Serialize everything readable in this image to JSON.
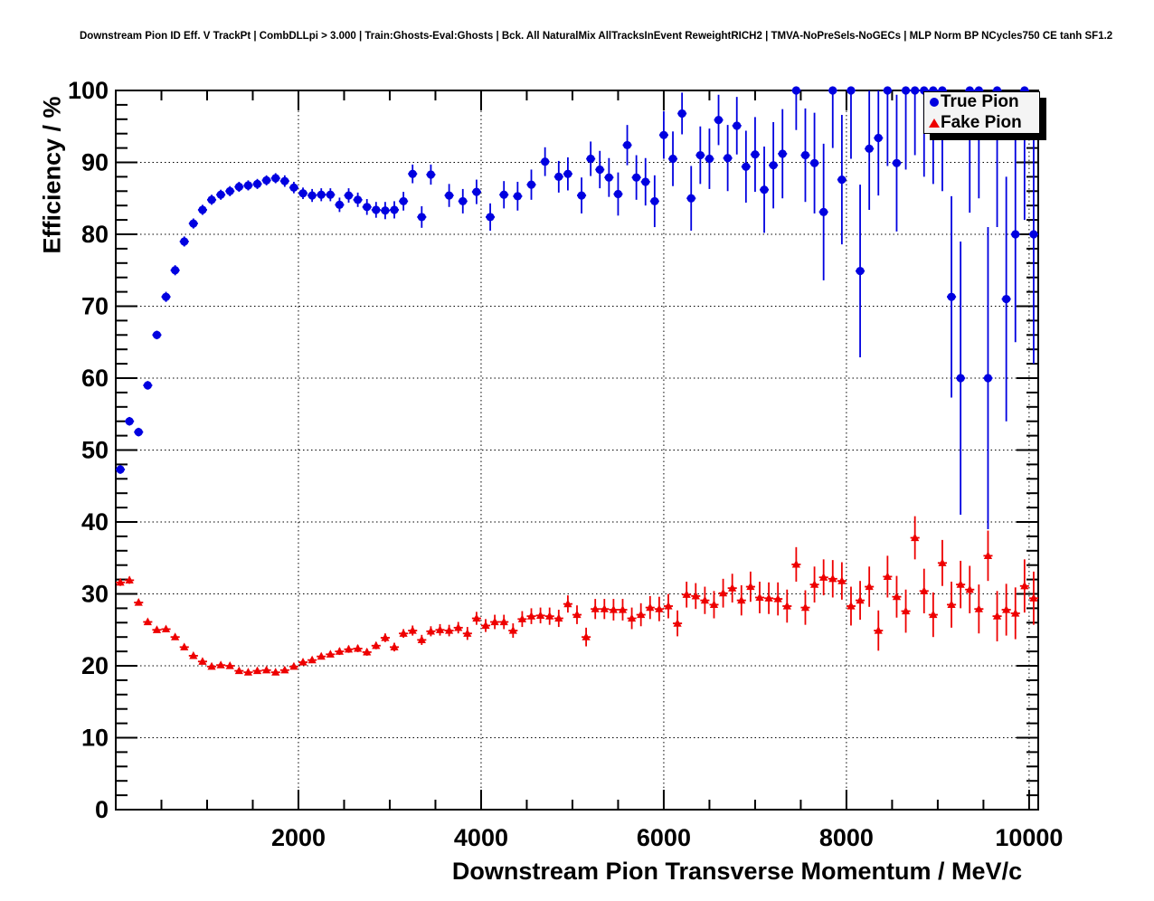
{
  "header": {
    "title": "Downstream Pion ID Eff. V TrackPt | CombDLLpi > 3.000 | Train:Ghosts-Eval:Ghosts | Bck. All NaturalMix AllTracksInEvent ReweightRICH2 | TMVA-NoPreSels-NoGECs | MLP Norm BP NCycles750 CE tanh SF1.2"
  },
  "legend": {
    "entries": [
      {
        "label": "True Pion",
        "marker": "circle",
        "color": "#0000e0"
      },
      {
        "label": "Fake Pion",
        "marker": "triangle",
        "color": "#ee0000"
      }
    ]
  },
  "chart_data": {
    "type": "scatter",
    "title": "Downstream Pion ID Eff. V TrackPt",
    "xlabel": "Downstream Pion Transverse Momentum / MeV/c",
    "ylabel": "Efficiency / %",
    "xlim": [
      0,
      10100
    ],
    "ylim": [
      0,
      100
    ],
    "xticks_major": [
      2000,
      4000,
      6000,
      8000,
      10000
    ],
    "xtick_minor_step": 500,
    "ytick_major_step": 10,
    "ytick_minor_step": 2,
    "grid": "dotted",
    "legend_position": "top-right",
    "x_half_bin": 50,
    "series": [
      {
        "name": "True Pion",
        "marker": "circle",
        "color": "#0000e0",
        "points": [
          [
            50,
            47.3,
            0.6
          ],
          [
            150,
            54.0,
            0.6
          ],
          [
            250,
            52.5,
            0.6
          ],
          [
            350,
            59.0,
            0.6
          ],
          [
            450,
            66.0,
            0.6
          ],
          [
            550,
            71.3,
            0.7
          ],
          [
            650,
            75.0,
            0.7
          ],
          [
            750,
            79.0,
            0.7
          ],
          [
            850,
            81.5,
            0.7
          ],
          [
            950,
            83.4,
            0.7
          ],
          [
            1050,
            84.8,
            0.7
          ],
          [
            1150,
            85.5,
            0.7
          ],
          [
            1250,
            86.0,
            0.7
          ],
          [
            1350,
            86.6,
            0.7
          ],
          [
            1450,
            86.8,
            0.7
          ],
          [
            1550,
            87.0,
            0.7
          ],
          [
            1650,
            87.5,
            0.7
          ],
          [
            1750,
            87.8,
            0.7
          ],
          [
            1850,
            87.4,
            0.8
          ],
          [
            1950,
            86.5,
            0.8
          ],
          [
            2050,
            85.7,
            0.8
          ],
          [
            2150,
            85.4,
            0.9
          ],
          [
            2250,
            85.5,
            0.9
          ],
          [
            2350,
            85.5,
            0.9
          ],
          [
            2450,
            84.1,
            1.0
          ],
          [
            2550,
            85.4,
            1.0
          ],
          [
            2650,
            84.8,
            1.0
          ],
          [
            2750,
            83.8,
            1.1
          ],
          [
            2850,
            83.4,
            1.1
          ],
          [
            2950,
            83.3,
            1.2
          ],
          [
            3050,
            83.4,
            1.2
          ],
          [
            3150,
            84.6,
            1.3
          ],
          [
            3250,
            88.4,
            1.3
          ],
          [
            3350,
            82.4,
            1.5
          ],
          [
            3450,
            88.3,
            1.4
          ],
          [
            3650,
            85.4,
            1.6
          ],
          [
            3800,
            84.6,
            1.7
          ],
          [
            3950,
            85.9,
            1.7
          ],
          [
            4100,
            82.4,
            1.9
          ],
          [
            4250,
            85.5,
            1.9
          ],
          [
            4400,
            85.3,
            2.0
          ],
          [
            4550,
            86.9,
            2.1
          ],
          [
            4700,
            90.1,
            2.0
          ],
          [
            4850,
            88.0,
            2.2
          ],
          [
            4950,
            88.4,
            2.3
          ],
          [
            5100,
            85.4,
            2.5
          ],
          [
            5200,
            90.5,
            2.4
          ],
          [
            5300,
            89.0,
            2.6
          ],
          [
            5400,
            87.9,
            2.7
          ],
          [
            5500,
            85.6,
            3.0
          ],
          [
            5600,
            92.4,
            2.8
          ],
          [
            5700,
            87.9,
            3.1
          ],
          [
            5800,
            87.3,
            3.3
          ],
          [
            5900,
            84.6,
            3.6
          ],
          [
            6000,
            93.8,
            3.3
          ],
          [
            6100,
            90.5,
            3.8
          ],
          [
            6200,
            96.8,
            2.9
          ],
          [
            6300,
            85.0,
            4.5
          ],
          [
            6400,
            91.0,
            4.0
          ],
          [
            6500,
            90.5,
            4.2
          ],
          [
            6600,
            95.9,
            3.5
          ],
          [
            6700,
            90.6,
            4.6
          ],
          [
            6800,
            95.1,
            4.0
          ],
          [
            6900,
            89.4,
            5.0
          ],
          [
            7000,
            91.1,
            5.2
          ],
          [
            7100,
            86.2,
            6.0
          ],
          [
            7200,
            89.6,
            6.0
          ],
          [
            7300,
            91.2,
            6.2
          ],
          [
            7450,
            100,
            5.5
          ],
          [
            7550,
            91.0,
            6.5
          ],
          [
            7650,
            89.9,
            7.0
          ],
          [
            7750,
            83.1,
            9.5
          ],
          [
            7850,
            100,
            8.0
          ],
          [
            7950,
            87.6,
            9.0
          ],
          [
            8050,
            100,
            9.5
          ],
          [
            8150,
            74.9,
            12.0
          ],
          [
            8250,
            91.9,
            8.5
          ],
          [
            8350,
            93.4,
            8.0
          ],
          [
            8450,
            100,
            10.5
          ],
          [
            8550,
            89.9,
            9.5
          ],
          [
            8650,
            100,
            11.0
          ],
          [
            8750,
            100,
            9.0
          ],
          [
            8850,
            100,
            12.0
          ],
          [
            8950,
            100,
            13.0
          ],
          [
            9050,
            100,
            14.0
          ],
          [
            9150,
            71.3,
            14.0
          ],
          [
            9250,
            60.0,
            19.0
          ],
          [
            9350,
            100,
            17.0
          ],
          [
            9450,
            100,
            15.0
          ],
          [
            9550,
            60.0,
            21.0
          ],
          [
            9650,
            100,
            19.0
          ],
          [
            9750,
            71.0,
            17.0
          ],
          [
            9850,
            80.0,
            15.0
          ],
          [
            9950,
            100,
            18.0
          ],
          [
            10050,
            80.0,
            18.0
          ]
        ]
      },
      {
        "name": "Fake Pion",
        "marker": "triangle",
        "color": "#ee0000",
        "points": [
          [
            50,
            31.6,
            0.5
          ],
          [
            150,
            31.9,
            0.5
          ],
          [
            250,
            28.8,
            0.4
          ],
          [
            350,
            26.1,
            0.4
          ],
          [
            450,
            25.0,
            0.4
          ],
          [
            550,
            25.1,
            0.4
          ],
          [
            650,
            24.0,
            0.4
          ],
          [
            750,
            22.6,
            0.3
          ],
          [
            850,
            21.4,
            0.3
          ],
          [
            950,
            20.6,
            0.3
          ],
          [
            1050,
            19.9,
            0.3
          ],
          [
            1150,
            20.1,
            0.3
          ],
          [
            1250,
            20.0,
            0.3
          ],
          [
            1350,
            19.3,
            0.3
          ],
          [
            1450,
            19.1,
            0.3
          ],
          [
            1550,
            19.3,
            0.3
          ],
          [
            1650,
            19.4,
            0.3
          ],
          [
            1750,
            19.1,
            0.3
          ],
          [
            1850,
            19.4,
            0.3
          ],
          [
            1950,
            19.9,
            0.4
          ],
          [
            2050,
            20.5,
            0.4
          ],
          [
            2150,
            20.8,
            0.4
          ],
          [
            2250,
            21.3,
            0.4
          ],
          [
            2350,
            21.6,
            0.4
          ],
          [
            2450,
            22.0,
            0.5
          ],
          [
            2550,
            22.3,
            0.5
          ],
          [
            2650,
            22.4,
            0.5
          ],
          [
            2750,
            21.9,
            0.5
          ],
          [
            2850,
            22.8,
            0.5
          ],
          [
            2950,
            23.9,
            0.6
          ],
          [
            3050,
            22.6,
            0.6
          ],
          [
            3150,
            24.5,
            0.6
          ],
          [
            3250,
            24.9,
            0.7
          ],
          [
            3350,
            23.6,
            0.7
          ],
          [
            3450,
            24.8,
            0.7
          ],
          [
            3550,
            25.0,
            0.8
          ],
          [
            3650,
            24.9,
            0.8
          ],
          [
            3750,
            25.3,
            0.8
          ],
          [
            3850,
            24.5,
            0.9
          ],
          [
            3950,
            26.6,
            0.9
          ],
          [
            4050,
            25.6,
            0.9
          ],
          [
            4150,
            26.1,
            1.0
          ],
          [
            4250,
            26.1,
            1.0
          ],
          [
            4350,
            24.9,
            1.0
          ],
          [
            4450,
            26.5,
            1.1
          ],
          [
            4550,
            26.9,
            1.1
          ],
          [
            4650,
            27.0,
            1.1
          ],
          [
            4750,
            26.9,
            1.2
          ],
          [
            4850,
            26.6,
            1.2
          ],
          [
            4950,
            28.6,
            1.2
          ],
          [
            5050,
            27.1,
            1.3
          ],
          [
            5150,
            24.0,
            1.3
          ],
          [
            5250,
            27.9,
            1.4
          ],
          [
            5350,
            27.9,
            1.4
          ],
          [
            5450,
            27.8,
            1.5
          ],
          [
            5550,
            27.8,
            1.5
          ],
          [
            5650,
            26.6,
            1.5
          ],
          [
            5750,
            27.1,
            1.6
          ],
          [
            5850,
            28.1,
            1.6
          ],
          [
            5950,
            27.9,
            1.7
          ],
          [
            6050,
            28.3,
            1.7
          ],
          [
            6150,
            25.9,
            1.8
          ],
          [
            6250,
            29.9,
            1.8
          ],
          [
            6350,
            29.7,
            1.8
          ],
          [
            6450,
            29.1,
            1.9
          ],
          [
            6550,
            28.5,
            1.9
          ],
          [
            6650,
            30.1,
            2.0
          ],
          [
            6750,
            30.8,
            2.0
          ],
          [
            6850,
            29.1,
            2.1
          ],
          [
            6950,
            31.0,
            2.1
          ],
          [
            7050,
            29.5,
            2.2
          ],
          [
            7150,
            29.4,
            2.2
          ],
          [
            7250,
            29.3,
            2.3
          ],
          [
            7350,
            28.3,
            2.3
          ],
          [
            7450,
            34.1,
            2.4
          ],
          [
            7550,
            28.1,
            2.4
          ],
          [
            7650,
            31.3,
            2.5
          ],
          [
            7750,
            32.3,
            2.5
          ],
          [
            7850,
            32.1,
            2.6
          ],
          [
            7950,
            31.8,
            2.6
          ],
          [
            8050,
            28.3,
            2.7
          ],
          [
            8150,
            29.1,
            2.7
          ],
          [
            8250,
            31.0,
            2.8
          ],
          [
            8350,
            24.9,
            2.8
          ],
          [
            8450,
            32.4,
            2.9
          ],
          [
            8550,
            29.6,
            2.9
          ],
          [
            8650,
            27.6,
            3.0
          ],
          [
            8750,
            37.8,
            3.0
          ],
          [
            8850,
            30.4,
            3.1
          ],
          [
            8950,
            27.1,
            3.1
          ],
          [
            9050,
            34.3,
            3.2
          ],
          [
            9150,
            28.5,
            3.2
          ],
          [
            9250,
            31.3,
            3.3
          ],
          [
            9350,
            30.6,
            3.3
          ],
          [
            9450,
            27.9,
            3.4
          ],
          [
            9550,
            35.3,
            3.5
          ],
          [
            9650,
            26.9,
            3.5
          ],
          [
            9750,
            27.8,
            3.6
          ],
          [
            9850,
            27.3,
            3.6
          ],
          [
            9950,
            31.1,
            3.7
          ],
          [
            10050,
            29.4,
            3.7
          ]
        ]
      }
    ]
  }
}
